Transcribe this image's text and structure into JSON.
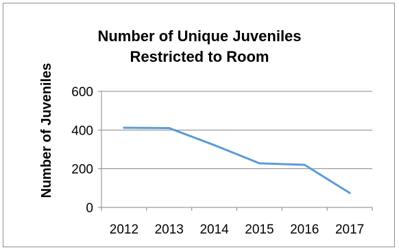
{
  "chart_data": {
    "type": "line",
    "title_lines": [
      "Number of Unique Juveniles",
      "Restricted to Room"
    ],
    "ylabel": "Number of Juveniles",
    "xlabel": "",
    "categories": [
      "2012",
      "2013",
      "2014",
      "2015",
      "2016",
      "2017"
    ],
    "series": [
      {
        "values": [
          412,
          410,
          322,
          228,
          220,
          75
        ],
        "color": "#5b9bd5"
      }
    ],
    "ylim": [
      0,
      600
    ],
    "yticks": [
      0,
      200,
      400,
      600
    ],
    "grid": true,
    "gridColor": "#868686",
    "legend": "none"
  }
}
